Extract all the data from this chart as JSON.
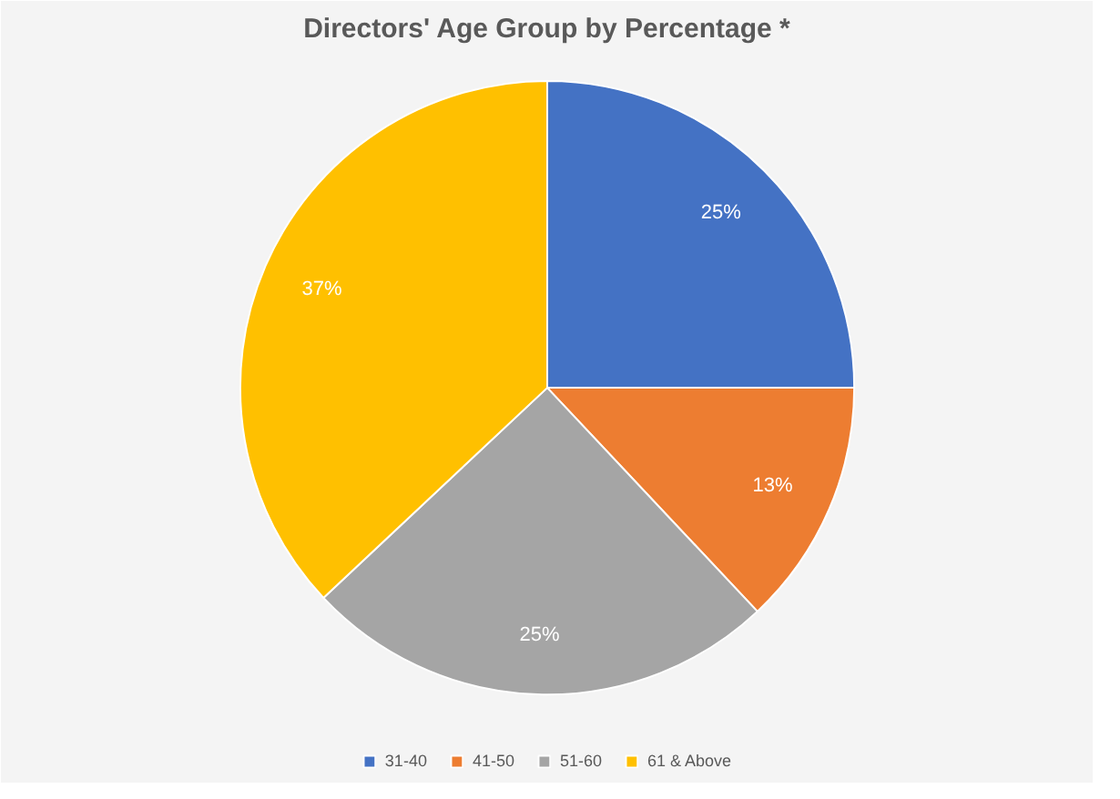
{
  "chart_data": {
    "type": "pie",
    "title": "Directors' Age Group by Percentage *",
    "categories": [
      "31-40",
      "41-50",
      "51-60",
      "61 & Above"
    ],
    "values": [
      25,
      13,
      25,
      37
    ],
    "colors": [
      "#4472c4",
      "#ed7d31",
      "#a5a5a5",
      "#ffc000"
    ],
    "value_labels": [
      "25%",
      "13%",
      "25%",
      "37%"
    ],
    "legend": "bottom"
  }
}
